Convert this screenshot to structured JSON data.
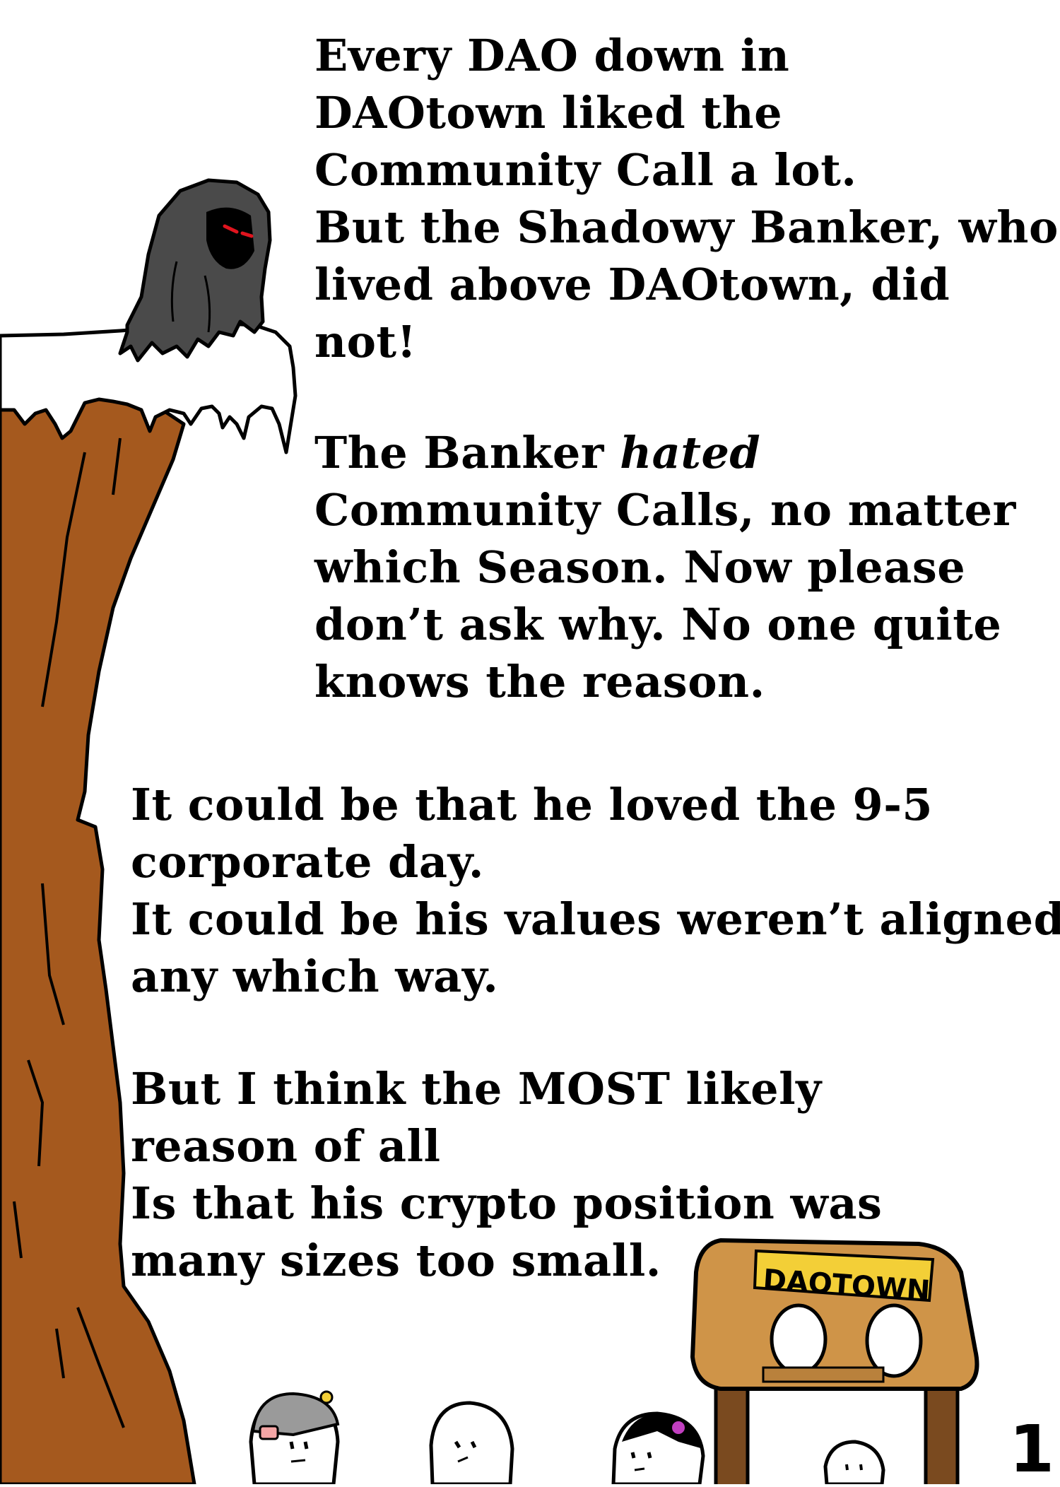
{
  "story": {
    "block1": [
      "Every DAO down in",
      "DAOtown liked the",
      "Community Call a lot.",
      "But the Shadowy Banker, who",
      "lived above DAOtown, did",
      "not!"
    ],
    "block2": {
      "line1_pre": "The Banker ",
      "line1_em": "hated",
      "rest": [
        "Community Calls, no matter",
        "which Season. Now please",
        "don’t ask why. No one quite",
        "knows the reason."
      ]
    },
    "block3": [
      "It could be that he loved the 9-5",
      "corporate day.",
      "It could be his values weren’t aligned",
      "any which way."
    ],
    "block4": [
      "But I think the MOST likely",
      "reason of all",
      "Is that his crypto position was",
      "many sizes too small."
    ]
  },
  "sign": {
    "label": "DAOTOWN"
  },
  "page": {
    "number": "1"
  },
  "colors": {
    "cliff": "#a5591e",
    "snow": "#ffffff",
    "cloak": "#4a4a4a",
    "eyes": "#e0141e",
    "sign_wood": "#cf9448",
    "sign_plate": "#f3cf37",
    "post": "#7a4a1f",
    "flower": "#c13fc0"
  }
}
